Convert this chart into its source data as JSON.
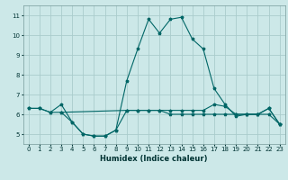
{
  "xlabel": "Humidex (Indice chaleur)",
  "background_color": "#cce8e8",
  "grid_color": "#aacccc",
  "line_color": "#006666",
  "xlim": [
    -0.5,
    23.5
  ],
  "ylim": [
    4.5,
    11.5
  ],
  "xticks": [
    0,
    1,
    2,
    3,
    4,
    5,
    6,
    7,
    8,
    9,
    10,
    11,
    12,
    13,
    14,
    15,
    16,
    17,
    18,
    19,
    20,
    21,
    22,
    23
  ],
  "yticks": [
    5,
    6,
    7,
    8,
    9,
    10,
    11
  ],
  "line2_x": [
    0,
    1,
    2,
    3,
    4,
    5,
    6,
    7,
    8,
    9,
    10,
    11,
    12,
    13,
    14,
    15,
    16,
    17,
    18,
    19,
    20,
    21,
    22,
    23
  ],
  "line2_y": [
    6.3,
    6.3,
    6.1,
    6.5,
    5.6,
    5.0,
    4.9,
    4.9,
    5.2,
    7.7,
    9.3,
    10.8,
    10.1,
    10.8,
    10.9,
    9.8,
    9.3,
    7.3,
    6.5,
    5.9,
    6.0,
    6.0,
    6.3,
    5.5
  ],
  "line1_x": [
    0,
    1,
    2,
    3,
    9,
    10,
    11,
    12,
    13,
    14,
    15,
    16,
    17,
    18,
    19,
    20,
    21,
    22,
    23
  ],
  "line1_y": [
    6.3,
    6.3,
    6.1,
    6.1,
    6.2,
    6.2,
    6.2,
    6.2,
    6.2,
    6.2,
    6.2,
    6.2,
    6.5,
    6.4,
    6.0,
    6.0,
    6.0,
    6.3,
    5.5
  ],
  "line3_x": [
    3,
    4,
    5,
    6,
    7,
    8,
    9,
    10,
    11,
    12,
    13,
    14,
    15,
    16,
    17,
    18,
    19,
    20,
    21,
    22,
    23
  ],
  "line3_y": [
    6.1,
    5.6,
    5.0,
    4.9,
    4.9,
    5.2,
    6.2,
    6.2,
    6.2,
    6.2,
    6.0,
    6.0,
    6.0,
    6.0,
    6.0,
    6.0,
    6.0,
    6.0,
    6.0,
    6.0,
    5.5
  ]
}
